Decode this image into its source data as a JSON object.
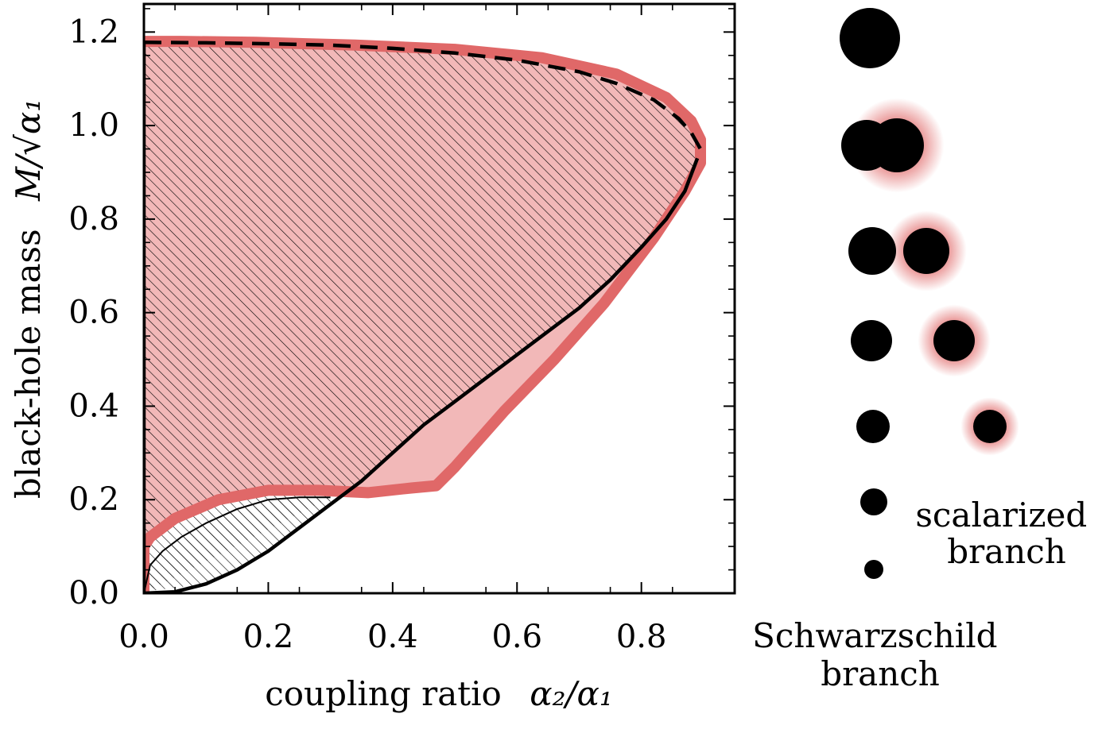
{
  "chart_data": {
    "type": "area",
    "xlabel": {
      "text": "coupling ratio",
      "math": "α₂/α₁"
    },
    "ylabel": {
      "text": "black-hole mass",
      "math": "M/√α₁"
    },
    "xlim": [
      0.0,
      0.95
    ],
    "ylim": [
      0.0,
      1.26
    ],
    "xticks": [
      "0.0",
      "0.2",
      "0.4",
      "0.6",
      "0.8"
    ],
    "yticks": [
      "0.0",
      "0.2",
      "0.4",
      "0.6",
      "0.8",
      "1.0",
      "1.2"
    ],
    "grid": false,
    "series": [
      {
        "style": "thick-light-red-outline",
        "color": "#e06868",
        "x": [
          0.0,
          0.0,
          0.01,
          0.05,
          0.12,
          0.2,
          0.28,
          0.36,
          0.43,
          0.47,
          0.5,
          0.58,
          0.66,
          0.74,
          0.82,
          0.87,
          0.895,
          0.895,
          0.88,
          0.84,
          0.76,
          0.64,
          0.5,
          0.34,
          0.18,
          0.06,
          0.0
        ],
        "y": [
          0.0,
          0.1,
          0.12,
          0.16,
          0.2,
          0.22,
          0.22,
          0.215,
          0.225,
          0.23,
          0.27,
          0.39,
          0.5,
          0.62,
          0.76,
          0.86,
          0.92,
          0.97,
          1.01,
          1.06,
          1.11,
          1.145,
          1.163,
          1.172,
          1.178,
          1.18,
          1.18
        ]
      },
      {
        "style": "solid-black",
        "color": "#000000",
        "x": [
          0.0,
          0.05,
          0.1,
          0.15,
          0.2,
          0.25,
          0.3,
          0.35,
          0.4,
          0.45,
          0.5,
          0.55,
          0.6,
          0.65,
          0.7,
          0.75,
          0.8,
          0.84,
          0.87,
          0.89
        ],
        "y": [
          0.0,
          0.003,
          0.02,
          0.05,
          0.09,
          0.14,
          0.19,
          0.24,
          0.3,
          0.36,
          0.41,
          0.46,
          0.51,
          0.56,
          0.61,
          0.67,
          0.74,
          0.8,
          0.86,
          0.93
        ]
      },
      {
        "style": "solid-black-left-edge",
        "color": "#000000",
        "x": [
          0.0,
          0.0
        ],
        "y": [
          0.0,
          1.18
        ]
      },
      {
        "style": "black-lower-boundary",
        "color": "#000000",
        "x": [
          0.0,
          0.01,
          0.03,
          0.06,
          0.1,
          0.15,
          0.2,
          0.25,
          0.3
        ],
        "y": [
          0.0,
          0.06,
          0.09,
          0.12,
          0.15,
          0.18,
          0.2,
          0.205,
          0.205
        ]
      },
      {
        "style": "dashed-black",
        "color": "#000000",
        "x": [
          0.0,
          0.1,
          0.2,
          0.3,
          0.4,
          0.5,
          0.6,
          0.7,
          0.76,
          0.82,
          0.86,
          0.88,
          0.895
        ],
        "y": [
          1.178,
          1.177,
          1.175,
          1.172,
          1.165,
          1.155,
          1.14,
          1.115,
          1.09,
          1.055,
          1.015,
          0.985,
          0.95
        ]
      }
    ],
    "legend": {
      "placement": "right",
      "labels": [
        "Schwarzschild branch",
        "scalarized branch"
      ],
      "schwarzschild_label": [
        "Schwarzschild",
        "branch"
      ],
      "scalarized_label": [
        "scalarized",
        "branch"
      ],
      "marker_color": "#000000",
      "glow_color": "#e06868"
    },
    "colors": {
      "region_fill": "#f2b8b8",
      "hatch": "#000000",
      "outline": "#e06868",
      "axis": "#000000"
    }
  }
}
